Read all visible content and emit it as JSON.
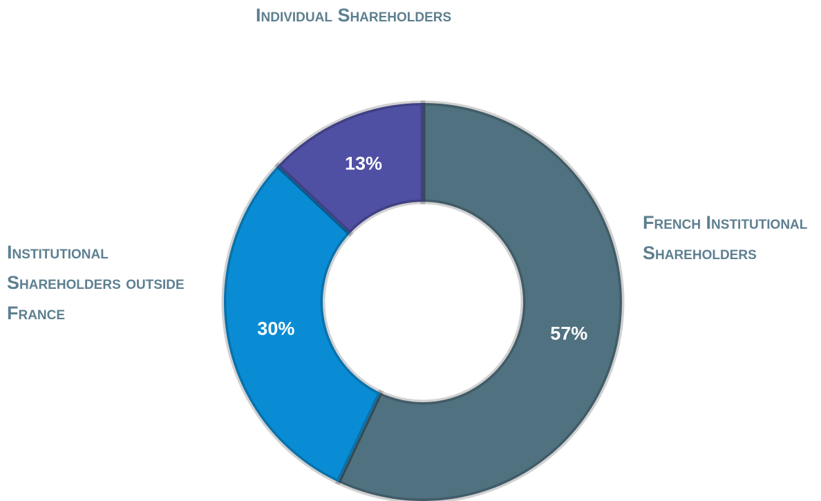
{
  "chart_data": {
    "type": "donut",
    "categories": [
      "French Institutional Shareholders",
      "Institutional Shareholders outside France",
      "Individual Shareholders"
    ],
    "values": [
      57,
      30,
      13
    ],
    "value_labels": [
      "57%",
      "30%",
      "13%"
    ],
    "colors": [
      "#50717f",
      "#0a8cd4",
      "#4f4fa3"
    ]
  }
}
